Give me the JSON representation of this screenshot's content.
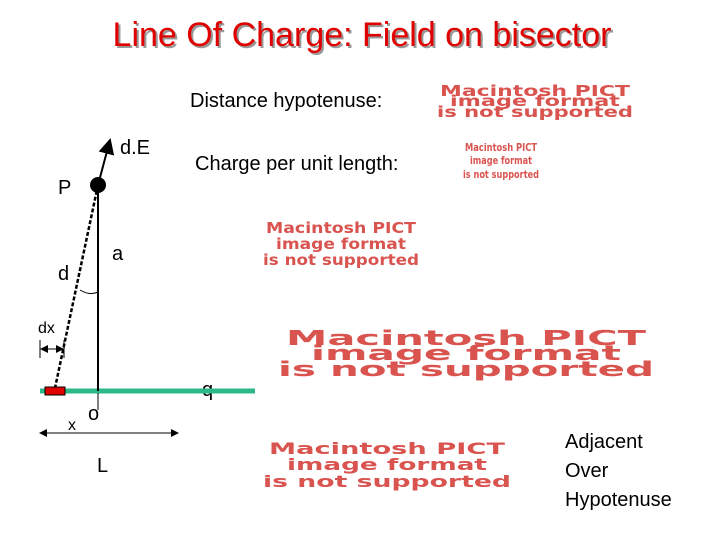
{
  "title": "Line Of Charge: Field on bisector",
  "labels": {
    "distance": "Distance hypotenuse:",
    "dE": "d.E",
    "charge": "Charge per unit length:",
    "P": "P",
    "a": "a",
    "d": "d",
    "dx": "dx",
    "q": "q",
    "x": "x",
    "o": "o",
    "L": "L"
  },
  "note": [
    "Adjacent",
    "Over",
    "Hypotenuse"
  ],
  "placeholders": [
    {
      "lines": [
        "Macintosh PICT",
        "image format",
        "is not supported"
      ]
    },
    {
      "lines": [
        "Macintosh PICT",
        "image format",
        "is not supported"
      ]
    },
    {
      "lines": [
        "Macintosh PICT",
        "image format",
        "is not supported"
      ]
    },
    {
      "lines": [
        "Macintosh PICT",
        "image format",
        "is not supported"
      ]
    },
    {
      "lines": [
        "Macintosh PICT",
        "image format",
        "is not supported"
      ]
    }
  ]
}
